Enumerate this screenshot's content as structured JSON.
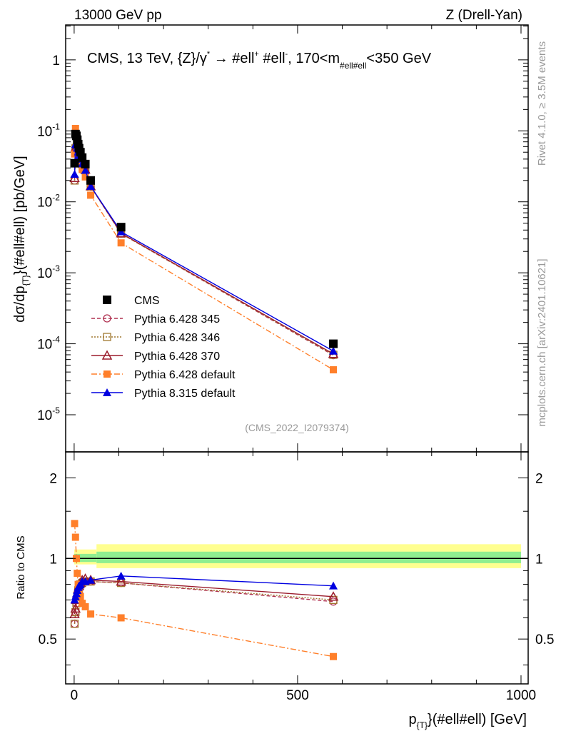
{
  "header": {
    "left": "13000 GeV pp",
    "right": "Z (Drell-Yan)"
  },
  "side": {
    "rivet": "Rivet 4.1.0, ≥ 3.5M events",
    "mcplots": "mcplots.cern.ch [arXiv:2401.10621]"
  },
  "chart_data": {
    "type": "scatter",
    "title": "CMS, 13 TeV, {Z}/γ* → #ell⁺ #ell⁻, 170<m_{#ell#ell}<350 GeV",
    "title_parts": {
      "a": "CMS, 13 TeV, {Z}/γ",
      "b": "*",
      "c": " →  #ell",
      "d": "+",
      "e": " #ell",
      "f": "-",
      "g": ", 170<m",
      "h": "#ell#ell",
      "i": "<350 GeV"
    },
    "analysis": "(CMS_2022_I2079374)",
    "ylabel": "dσ/dp_{T}(#ell#ell) [pb/GeV]",
    "ylabel_parts": {
      "a": "dσ/dp",
      "b": "{T}",
      "c": "}(#ell#ell) [pb/GeV]"
    },
    "ratio_ylabel": "Ratio to CMS",
    "xlabel": "p_{T}(#ell#ell) [GeV]",
    "xlabel_parts": {
      "a": "p",
      "b": "{T}",
      "c": "}(#ell#ell) [GeV]"
    },
    "xlim": [
      -19,
      1016
    ],
    "ylim": [
      3e-06,
      3.1
    ],
    "ratio_ylim": [
      0.34,
      2.5
    ],
    "xticks": [
      {
        "v": 0,
        "l": "0"
      },
      {
        "v": 500,
        "l": "500"
      },
      {
        "v": 1000,
        "l": "1000"
      }
    ],
    "yticks": [
      {
        "v": 1,
        "l": "1",
        "e": ""
      },
      {
        "v": 0.1,
        "l": "10",
        "e": "-1"
      },
      {
        "v": 0.01,
        "l": "10",
        "e": "-2"
      },
      {
        "v": 0.001,
        "l": "10",
        "e": "-3"
      },
      {
        "v": 0.0001,
        "l": "10",
        "e": "-4"
      },
      {
        "v": 1e-05,
        "l": "10",
        "e": "-5"
      }
    ],
    "ratio_yticks": [
      {
        "v": 2,
        "l": "2"
      },
      {
        "v": 1,
        "l": "1"
      },
      {
        "v": 0.5,
        "l": "0.5"
      }
    ],
    "x": [
      1,
      3,
      5,
      7,
      9,
      11,
      14,
      18,
      25,
      37,
      105,
      580
    ],
    "cms": {
      "name": "CMS",
      "values": [
        0.035,
        0.09,
        0.085,
        0.075,
        0.065,
        0.057,
        0.05,
        0.042,
        0.034,
        0.02,
        0.0044,
        0.0001
      ]
    },
    "band": {
      "edges": [
        0,
        50,
        1000
      ],
      "yellow": [
        [
          0.95,
          1.08
        ],
        [
          0.92,
          1.13
        ]
      ],
      "green": [
        [
          0.97,
          1.04
        ],
        [
          0.96,
          1.06
        ]
      ]
    },
    "series": [
      {
        "name": "Pythia 6.428 345",
        "color": "#b03050",
        "dash": "5,3",
        "marker": "circle-open",
        "ratio_to_cms": [
          0.57,
          0.63,
          0.68,
          0.72,
          0.76,
          0.78,
          0.8,
          0.82,
          0.82,
          0.82,
          0.81,
          0.69
        ]
      },
      {
        "name": "Pythia 6.428 346",
        "color": "#a07830",
        "dash": "2,2",
        "marker": "square-open",
        "ratio_to_cms": [
          0.57,
          0.63,
          0.68,
          0.72,
          0.76,
          0.78,
          0.8,
          0.81,
          0.82,
          0.82,
          0.81,
          0.7
        ]
      },
      {
        "name": "Pythia 6.428 370",
        "color": "#9b1c2c",
        "dash": "",
        "marker": "triangle-open",
        "ratio_to_cms": [
          0.62,
          0.65,
          0.7,
          0.74,
          0.77,
          0.79,
          0.81,
          0.83,
          0.84,
          0.83,
          0.82,
          0.72
        ]
      },
      {
        "name": "Pythia 6.428 default",
        "color": "#ff7f2a",
        "dash": "8,3,2,3",
        "marker": "square",
        "ratio_to_cms": [
          1.35,
          1.2,
          1.0,
          0.88,
          0.8,
          0.75,
          0.72,
          0.68,
          0.66,
          0.62,
          0.6,
          0.43
        ]
      },
      {
        "name": "Pythia 8.315 default",
        "color": "#0000e0",
        "dash": "",
        "marker": "triangle",
        "ratio_to_cms": [
          0.7,
          0.72,
          0.74,
          0.76,
          0.78,
          0.79,
          0.8,
          0.82,
          0.82,
          0.83,
          0.86,
          0.79
        ]
      }
    ]
  }
}
